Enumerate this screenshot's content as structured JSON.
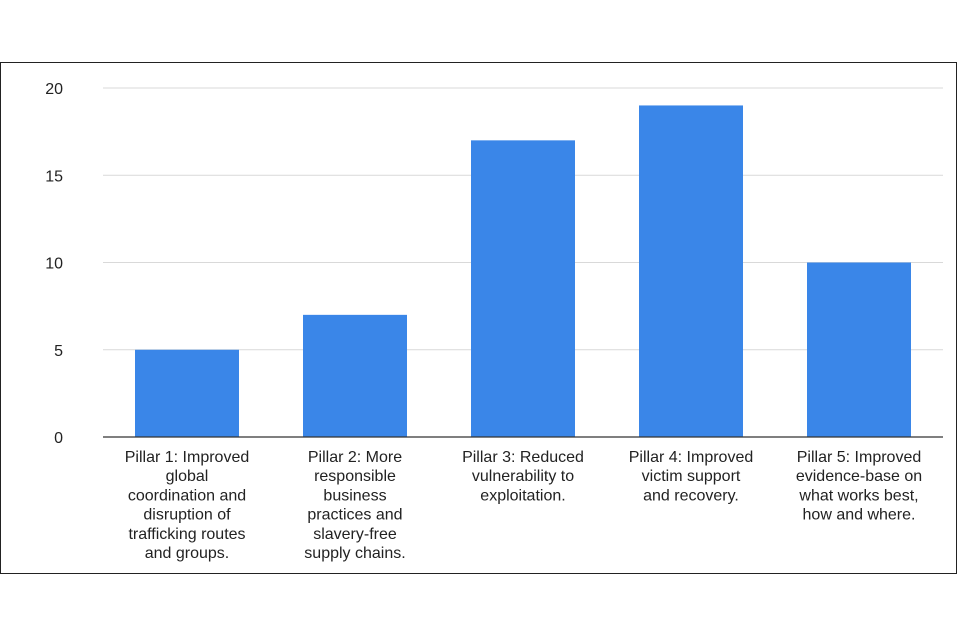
{
  "chart_data": {
    "type": "bar",
    "title": "",
    "xlabel": "",
    "ylabel": "",
    "categories": [
      [
        "Pillar 1: Improved",
        "global",
        "coordination and",
        "disruption of",
        "trafficking routes",
        "and groups."
      ],
      [
        "Pillar 2: More",
        "responsible",
        "business",
        "practices and",
        "slavery-free",
        "supply chains."
      ],
      [
        "Pillar 3: Reduced",
        "vulnerability to",
        "exploitation."
      ],
      [
        "Pillar 4: Improved",
        "victim support",
        "and recovery."
      ],
      [
        "Pillar 5: Improved",
        "evidence-base on",
        "what works best,",
        "how and where."
      ]
    ],
    "values": [
      5,
      7,
      17,
      19,
      10
    ],
    "ylim": [
      0,
      20
    ],
    "yticks": [
      0,
      5,
      10,
      15,
      20
    ],
    "grid": true,
    "legend": "none",
    "bar_color": "#3a86e8"
  }
}
